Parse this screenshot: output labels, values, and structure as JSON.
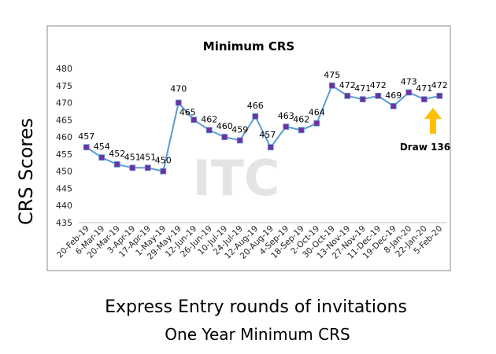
{
  "chart_data": {
    "type": "line",
    "title": "Minimum  CRS",
    "ylabel": "CRS Scores",
    "xlabel": "Express Entry rounds of invitations",
    "xlabel_secondary": "One Year Minimum CRS",
    "ylim": [
      435,
      480
    ],
    "y_ticks": [
      435,
      440,
      445,
      450,
      455,
      460,
      465,
      470,
      475,
      480
    ],
    "grid": false,
    "categories": [
      "20-Feb-19",
      "6-Mar-19",
      "20-Mar-19",
      "3-Apr-19",
      "17-Apr-19",
      "1-May-19",
      "29-May-19",
      "12-Jun-19",
      "26-Jun-19",
      "10-Jul-19",
      "24-Jul-19",
      "12-Aug-19",
      "20-Aug-19",
      "4-Sep-19",
      "18-Sep-19",
      "2-Oct-19",
      "30-Oct-19",
      "13-Nov-19",
      "27-Nov-19",
      "11-Dec-19",
      "19-Dec-19",
      "8-Jan-20",
      "22-Jan-20",
      "5-Feb-20"
    ],
    "values": [
      457,
      454,
      452,
      451,
      451,
      450,
      470,
      465,
      462,
      460,
      459,
      466,
      457,
      463,
      462,
      464,
      475,
      472,
      471,
      472,
      469,
      473,
      471,
      472
    ],
    "data_labels": [
      "457",
      "454",
      "452",
      "451",
      "451",
      "450",
      "470",
      "465",
      "462",
      "460",
      "459",
      "466",
      "457",
      "463",
      "462",
      "464",
      "475",
      "472",
      "471",
      "472",
      "469",
      "473",
      "471",
      "472"
    ],
    "line_color": "#5b9bd5",
    "marker_color": "#7030a0",
    "annotation": {
      "text": "Draw 136",
      "arrow_color": "#ffc000",
      "points_to": "5-Feb-20"
    },
    "watermark": "ITC"
  }
}
